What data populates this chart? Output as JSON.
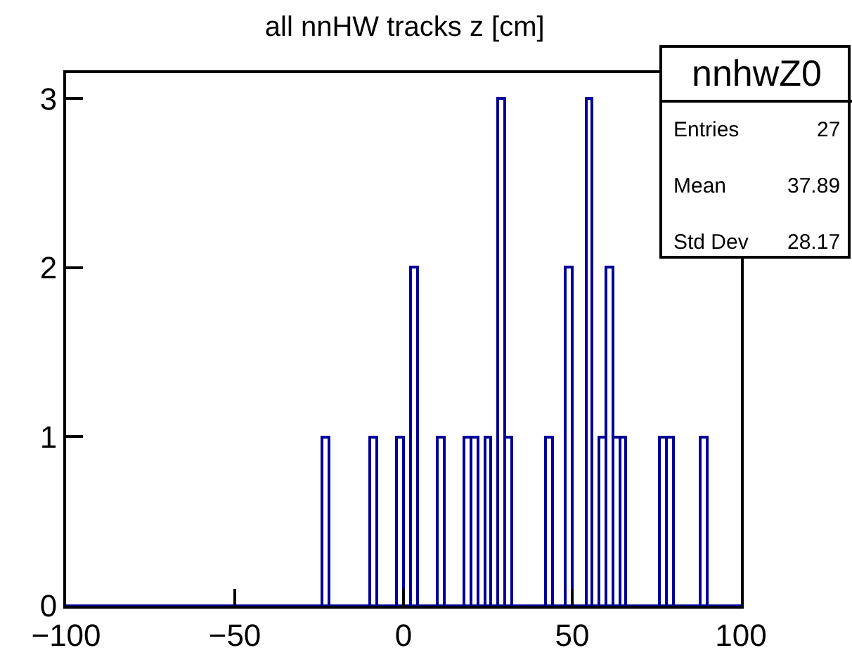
{
  "chart_data": {
    "type": "histogram",
    "title": "all nnHW tracks z [cm]",
    "bins": [
      -100,
      -98,
      -96,
      -94,
      -92,
      -90,
      -88,
      -86,
      -84,
      -82,
      -80,
      -78,
      -76,
      -74,
      -72,
      -70,
      -68,
      -66,
      -64,
      -62,
      -60,
      -58,
      -56,
      -54,
      -52,
      -50,
      -48,
      -46,
      -44,
      -42,
      -40,
      -38,
      -36,
      -34,
      -32,
      -30,
      -28,
      -26,
      -24,
      -22,
      -20,
      -18,
      -16,
      -14,
      -12,
      -10,
      -8,
      -6,
      -4,
      -2,
      0,
      2,
      4,
      6,
      8,
      10,
      12,
      14,
      16,
      18,
      20,
      22,
      24,
      26,
      28,
      30,
      32,
      34,
      36,
      38,
      40,
      42,
      44,
      46,
      48,
      50,
      52,
      54,
      56,
      58,
      60,
      62,
      64,
      66,
      68,
      70,
      72,
      74,
      76,
      78,
      80,
      82,
      84,
      86,
      88,
      90,
      92,
      94,
      96,
      98,
      100
    ],
    "values": [
      0,
      0,
      0,
      0,
      0,
      0,
      0,
      0,
      0,
      0,
      0,
      0,
      0,
      0,
      0,
      0,
      0,
      0,
      0,
      0,
      0,
      0,
      0,
      0,
      0,
      0,
      0,
      0,
      0,
      0,
      0,
      0,
      0,
      0,
      0,
      0,
      0,
      0,
      1,
      0,
      0,
      0,
      0,
      0,
      0,
      1,
      0,
      0,
      0,
      1,
      0,
      2,
      0,
      0,
      0,
      1,
      0,
      0,
      0,
      1,
      1,
      0,
      1,
      0,
      3,
      1,
      0,
      0,
      0,
      0,
      0,
      1,
      0,
      0,
      2,
      0,
      0,
      3,
      0,
      1,
      2,
      1,
      1,
      0,
      0,
      0,
      0,
      0,
      1,
      1,
      0,
      0,
      0,
      0,
      1,
      0,
      0,
      0,
      0,
      0
    ],
    "color": "#000099",
    "xlim": [
      -100,
      100
    ],
    "xticks": [
      -100,
      -50,
      0,
      50,
      100
    ],
    "ylim": [
      0,
      3.15
    ],
    "yticks": [
      0,
      1,
      2,
      3
    ],
    "annotations": [
      "nnhwZ0",
      "Entries",
      "27",
      "Mean",
      "37.89",
      "Std Dev",
      "28.17"
    ]
  }
}
